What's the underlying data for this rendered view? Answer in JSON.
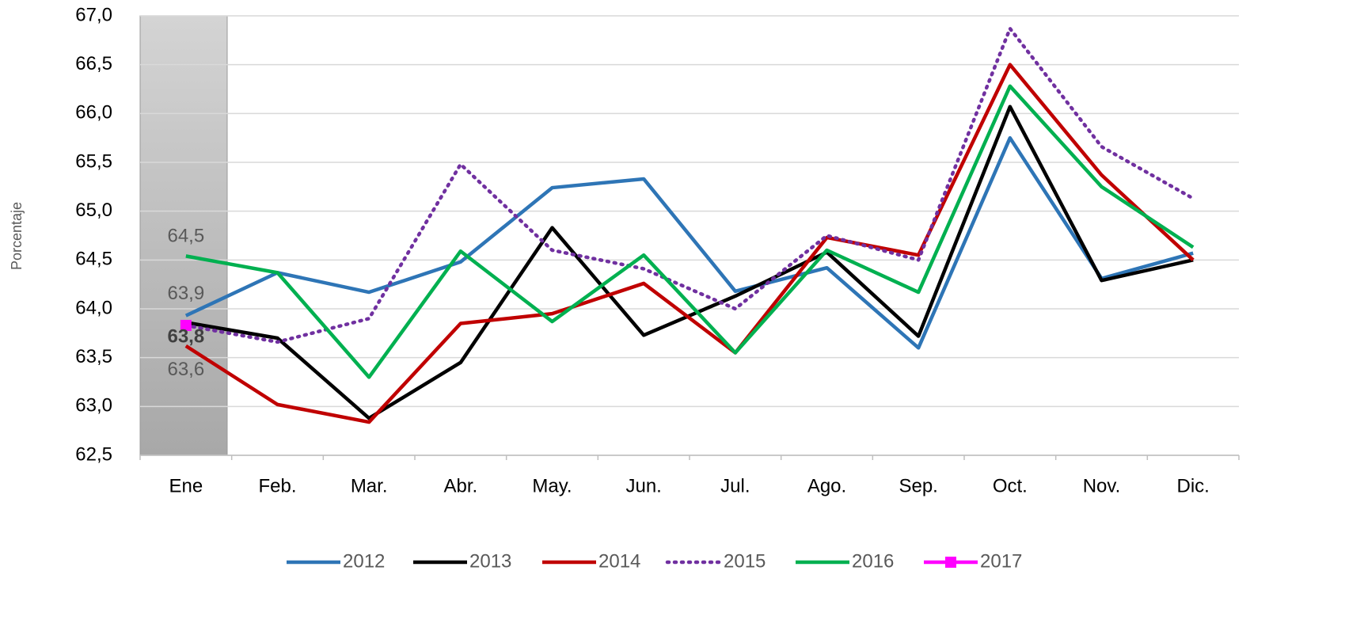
{
  "chart_data": {
    "type": "line",
    "y_label": "Porcentaje",
    "categories": [
      "Ene",
      "Feb.",
      "Mar.",
      "Abr.",
      "May.",
      "Jun.",
      "Jul.",
      "Ago.",
      "Sep.",
      "Oct.",
      "Nov.",
      "Dic."
    ],
    "ylim": [
      62.5,
      67.0
    ],
    "yticks": [
      {
        "value": 62.5,
        "label": "62,5"
      },
      {
        "value": 63.0,
        "label": "63,0"
      },
      {
        "value": 63.5,
        "label": "63,5"
      },
      {
        "value": 64.0,
        "label": "64,0"
      },
      {
        "value": 64.5,
        "label": "64,5"
      },
      {
        "value": 65.0,
        "label": "65,0"
      },
      {
        "value": 65.5,
        "label": "65,5"
      },
      {
        "value": 66.0,
        "label": "66,0"
      },
      {
        "value": 66.5,
        "label": "66,5"
      },
      {
        "value": 67.0,
        "label": "67,0"
      }
    ],
    "grid": true,
    "legend": "bottom",
    "series": [
      {
        "name": "2012",
        "color": "#2e75b6",
        "style": "solid",
        "values": [
          63.93,
          64.37,
          64.17,
          64.48,
          65.24,
          65.33,
          64.18,
          64.42,
          63.6,
          65.75,
          64.31,
          64.57
        ],
        "value_labels": [
          "63,9",
          null,
          null,
          null,
          null,
          null,
          null,
          null,
          null,
          null,
          null,
          null
        ]
      },
      {
        "name": "2013",
        "color": "#000000",
        "style": "solid",
        "values": [
          63.86,
          63.7,
          62.88,
          63.45,
          64.83,
          63.73,
          64.13,
          64.58,
          63.72,
          66.07,
          64.29,
          64.5
        ]
      },
      {
        "name": "2014",
        "color": "#c00000",
        "style": "solid",
        "values": [
          63.62,
          63.02,
          62.84,
          63.85,
          63.95,
          64.26,
          63.55,
          64.73,
          64.55,
          66.5,
          65.37,
          64.5
        ],
        "value_labels": [
          "63,6",
          null,
          null,
          null,
          null,
          null,
          null,
          null,
          null,
          null,
          null,
          null
        ]
      },
      {
        "name": "2015",
        "color": "#7030a0",
        "style": "dotted",
        "values": [
          63.83,
          63.66,
          63.9,
          65.48,
          64.6,
          64.41,
          64.0,
          64.75,
          64.5,
          66.87,
          65.66,
          65.13
        ]
      },
      {
        "name": "2016",
        "color": "#00b050",
        "style": "solid",
        "values": [
          64.54,
          64.37,
          63.3,
          64.59,
          63.87,
          64.55,
          63.55,
          64.6,
          64.17,
          66.28,
          65.25,
          64.63
        ],
        "value_labels": [
          "64,5",
          null,
          null,
          null,
          null,
          null,
          null,
          null,
          null,
          null,
          null,
          null
        ]
      },
      {
        "name": "2017",
        "color": "#ff00ff",
        "style": "solid",
        "marker": "square",
        "values": [
          63.83,
          null,
          null,
          null,
          null,
          null,
          null,
          null,
          null,
          null,
          null,
          null
        ],
        "value_labels": [
          "63,8",
          null,
          null,
          null,
          null,
          null,
          null,
          null,
          null,
          null,
          null,
          null
        ]
      }
    ]
  }
}
